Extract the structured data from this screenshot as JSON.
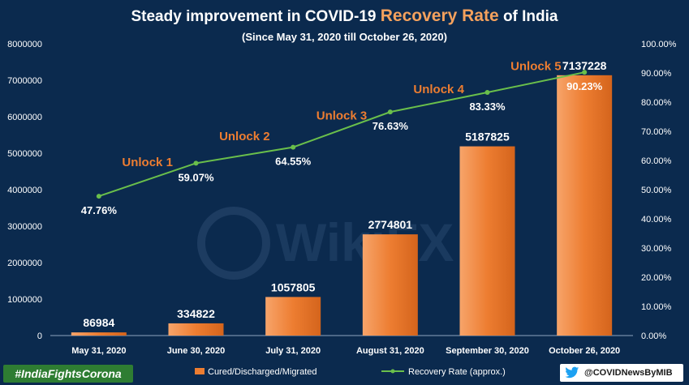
{
  "header": {
    "title_part1": "Steady  improvement  in COVID-19",
    "title_accent": "Recovery Rate",
    "title_part2": "of  India",
    "subtitle": "(Since  May 31, 2020  till  October 26, 2020)"
  },
  "footer": {
    "hashtag": "#IndiaFightsCorona",
    "handle": "@COVIDNewsByMIB",
    "handle_icon": "twitter-bird-icon"
  },
  "watermark": "WikiFX",
  "colors": {
    "background": "#0b2a4e",
    "bar": "#ed7d31",
    "line": "#6abf4b",
    "unlock_text": "#ed7d31",
    "title_accent": "#f4a15d",
    "hashtag_bg": "#2e7d32"
  },
  "chart_data": {
    "type": "bar",
    "categories": [
      "May 31, 2020",
      "June 30, 2020",
      "July 31, 2020",
      "August 31, 2020",
      "September 30, 2020",
      "October 26, 2020"
    ],
    "series": [
      {
        "name": "Cured/Discharged/Migrated",
        "type": "bar",
        "axis": "left",
        "values": [
          86984,
          334822,
          1057805,
          2774801,
          5187825,
          7137228
        ],
        "labels": [
          "86984",
          "334822",
          "1057805",
          "2774801",
          "5187825",
          "7137228"
        ]
      },
      {
        "name": "Recovery Rate (approx.)",
        "type": "line",
        "axis": "right",
        "values": [
          47.76,
          59.07,
          64.55,
          76.63,
          83.33,
          90.23
        ],
        "labels": [
          "47.76%",
          "59.07%",
          "64.55%",
          "76.63%",
          "83.33%",
          "90.23%"
        ]
      }
    ],
    "ylim": [
      0,
      8000000
    ],
    "y_ticks": [
      0,
      1000000,
      2000000,
      3000000,
      4000000,
      5000000,
      6000000,
      7000000,
      8000000
    ],
    "y_tick_labels": [
      "0",
      "1000000",
      "2000000",
      "3000000",
      "4000000",
      "5000000",
      "6000000",
      "7000000",
      "8000000"
    ],
    "y2lim": [
      0,
      100
    ],
    "y2_ticks": [
      0,
      10,
      20,
      30,
      40,
      50,
      60,
      70,
      80,
      90,
      100
    ],
    "y2_tick_labels": [
      "0.00%",
      "10.00%",
      "20.00%",
      "30.00%",
      "40.00%",
      "50.00%",
      "60.00%",
      "70.00%",
      "80.00%",
      "90.00%",
      "100.00%"
    ],
    "annotations": [
      {
        "text": "Unlock 1",
        "between": [
          0,
          1
        ],
        "rate": 58
      },
      {
        "text": "Unlock 2",
        "between": [
          1,
          2
        ],
        "rate": 67
      },
      {
        "text": "Unlock 3",
        "between": [
          2,
          3
        ],
        "rate": 74
      },
      {
        "text": "Unlock 4",
        "between": [
          3,
          4
        ],
        "rate": 83
      },
      {
        "text": "Unlock 5",
        "between": [
          4,
          5
        ],
        "rate": 91
      }
    ],
    "grid": false,
    "legend": "bottom"
  }
}
